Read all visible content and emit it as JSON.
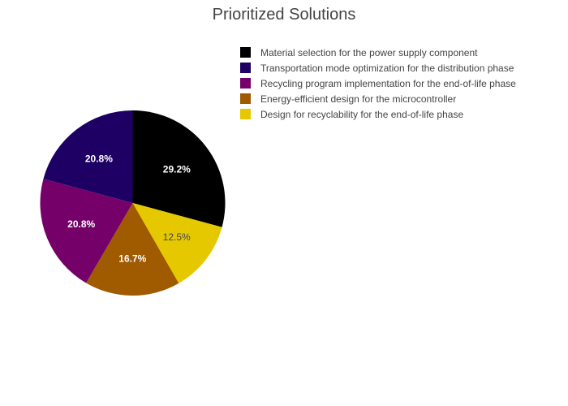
{
  "chart_data": {
    "type": "pie",
    "title": "Prioritized Solutions",
    "legend_position": "top-right",
    "direction": "clockwise",
    "start_angle_deg": 90,
    "slices": [
      {
        "label": "Material selection for the power supply component",
        "value": 29.2,
        "display": "29.2%",
        "color": "#000000",
        "text_color": "#ffffff"
      },
      {
        "label": "Design for recyclability for the end-of-life phase",
        "value": 12.5,
        "display": "12.5%",
        "color": "#e6c800",
        "text_color": "#444444"
      },
      {
        "label": "Energy-efficient design for the microcontroller",
        "value": 16.7,
        "display": "16.7%",
        "color": "#a05a00",
        "text_color": "#ffffff"
      },
      {
        "label": "Recycling program implementation for the end-of-life phase",
        "value": 20.8,
        "display": "20.8%",
        "color": "#750069",
        "text_color": "#ffffff"
      },
      {
        "label": "Transportation mode optimization for the distribution phase",
        "value": 20.8,
        "display": "20.8%",
        "color": "#1e0064",
        "text_color": "#ffffff"
      }
    ],
    "legend": [
      {
        "label": "Material selection for the power supply component",
        "color": "#000000"
      },
      {
        "label": "Transportation mode optimization for the distribution phase",
        "color": "#1e0064"
      },
      {
        "label": "Recycling program implementation for the end-of-life phase",
        "color": "#750069"
      },
      {
        "label": "Energy-efficient design for the microcontroller",
        "color": "#a05a00"
      },
      {
        "label": "Design for recyclability for the end-of-life phase",
        "color": "#e6c800"
      }
    ]
  }
}
